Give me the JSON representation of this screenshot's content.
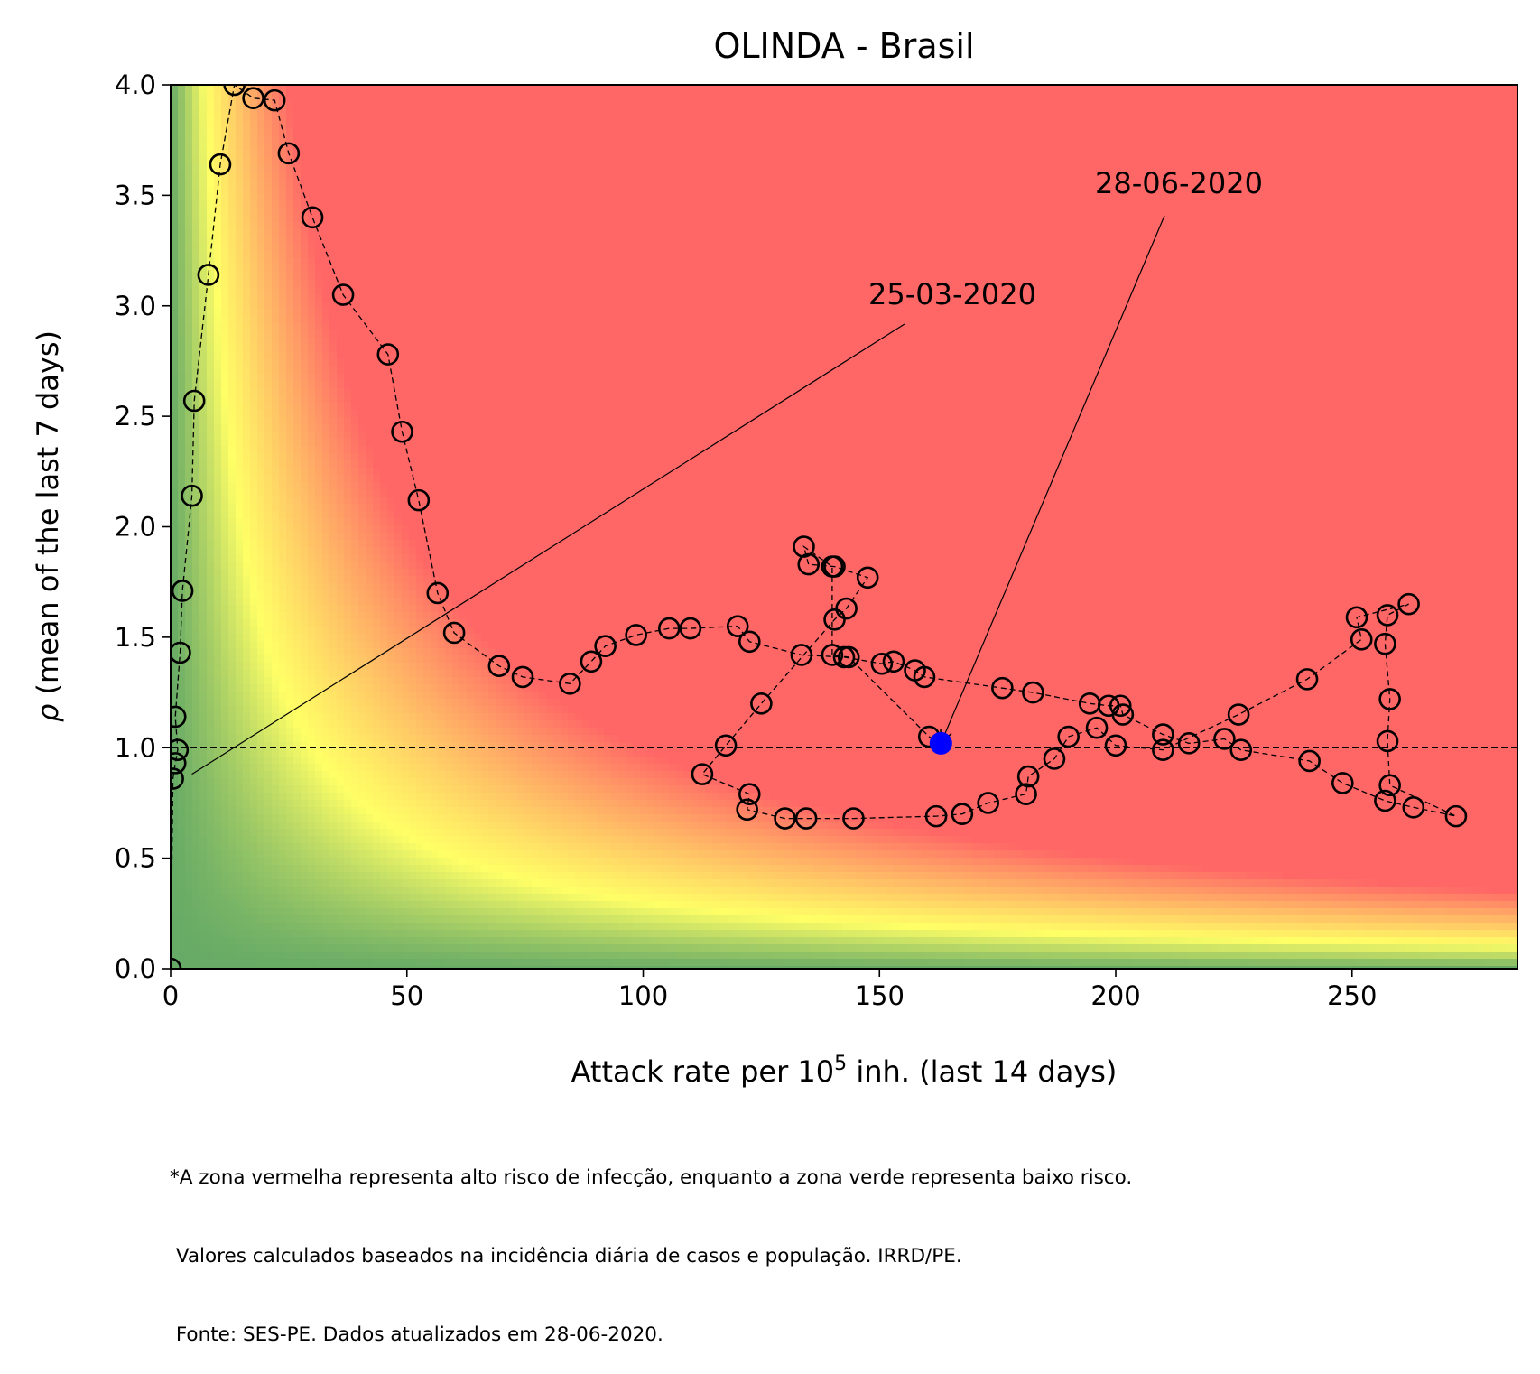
{
  "chart_data": {
    "type": "scatter",
    "title": "OLINDA - Brasil",
    "xlabel_prefix": "Attack rate per 10",
    "xlabel_sup": "5",
    "xlabel_suffix": " inh. (last 14 days)",
    "ylabel_symbol": "ρ",
    "ylabel_text": " (mean of the last 7 days)",
    "xlim": [
      0,
      285
    ],
    "ylim": [
      0,
      4.0
    ],
    "x_ticks": [
      0,
      50,
      100,
      150,
      200,
      250
    ],
    "x_tick_labels": [
      "0",
      "50",
      "100",
      "150",
      "200",
      "250"
    ],
    "y_ticks": [
      0,
      0.5,
      1.0,
      1.5,
      2.0,
      2.5,
      3.0,
      3.5,
      4.0
    ],
    "y_tick_labels": [
      "0.0",
      "0.5",
      "1.0",
      "1.5",
      "2.0",
      "2.5",
      "3.0",
      "3.5",
      "4.0"
    ],
    "grid": false,
    "reference_line_y": 1.0,
    "background": "risk colormap: green (low risk) to yellow to red (high risk) as attack rate × ρ increases",
    "colors": {
      "low_risk": "#66aa66",
      "medium_risk": "#ffff66",
      "high_risk": "#ff6666",
      "marker": "#000000",
      "current_point": "#0000ff"
    },
    "points": [
      {
        "x": 0.0,
        "y": 0.0
      },
      {
        "x": 0.5,
        "y": 0.86
      },
      {
        "x": 1.0,
        "y": 0.93
      },
      {
        "x": 1.5,
        "y": 0.99
      },
      {
        "x": 1.0,
        "y": 1.14
      },
      {
        "x": 2.0,
        "y": 1.43
      },
      {
        "x": 2.5,
        "y": 1.71
      },
      {
        "x": 4.5,
        "y": 2.14
      },
      {
        "x": 5.0,
        "y": 2.57
      },
      {
        "x": 8.0,
        "y": 3.14
      },
      {
        "x": 10.5,
        "y": 3.64
      },
      {
        "x": 13.5,
        "y": 4.0
      },
      {
        "x": 17.5,
        "y": 3.94
      },
      {
        "x": 22.0,
        "y": 3.93
      },
      {
        "x": 25.0,
        "y": 3.69
      },
      {
        "x": 30.0,
        "y": 3.4
      },
      {
        "x": 36.5,
        "y": 3.05
      },
      {
        "x": 46.0,
        "y": 2.78
      },
      {
        "x": 49.0,
        "y": 2.43
      },
      {
        "x": 52.5,
        "y": 2.12
      },
      {
        "x": 56.5,
        "y": 1.7
      },
      {
        "x": 60.0,
        "y": 1.52
      },
      {
        "x": 69.5,
        "y": 1.37
      },
      {
        "x": 74.5,
        "y": 1.32
      },
      {
        "x": 84.5,
        "y": 1.29
      },
      {
        "x": 89.0,
        "y": 1.39
      },
      {
        "x": 92.0,
        "y": 1.46
      },
      {
        "x": 98.5,
        "y": 1.51
      },
      {
        "x": 105.5,
        "y": 1.54
      },
      {
        "x": 110.0,
        "y": 1.54
      },
      {
        "x": 120.0,
        "y": 1.55
      },
      {
        "x": 122.5,
        "y": 1.48
      },
      {
        "x": 133.5,
        "y": 1.42
      },
      {
        "x": 142.5,
        "y": 1.41
      },
      {
        "x": 150.5,
        "y": 1.38
      },
      {
        "x": 153.0,
        "y": 1.39
      },
      {
        "x": 157.5,
        "y": 1.35
      },
      {
        "x": 159.5,
        "y": 1.32
      },
      {
        "x": 176.0,
        "y": 1.27
      },
      {
        "x": 182.5,
        "y": 1.25
      },
      {
        "x": 194.5,
        "y": 1.2
      },
      {
        "x": 198.5,
        "y": 1.19
      },
      {
        "x": 201.0,
        "y": 1.19
      },
      {
        "x": 201.5,
        "y": 1.15
      },
      {
        "x": 210.0,
        "y": 1.06
      },
      {
        "x": 215.5,
        "y": 1.02
      },
      {
        "x": 223.0,
        "y": 1.04
      },
      {
        "x": 226.5,
        "y": 0.99
      },
      {
        "x": 241.0,
        "y": 0.94
      },
      {
        "x": 248.0,
        "y": 0.84
      },
      {
        "x": 257.0,
        "y": 0.76
      },
      {
        "x": 263.0,
        "y": 0.73
      },
      {
        "x": 272.0,
        "y": 0.69
      },
      {
        "x": 258.0,
        "y": 0.83
      },
      {
        "x": 257.5,
        "y": 1.03
      },
      {
        "x": 258.0,
        "y": 1.22
      },
      {
        "x": 257.0,
        "y": 1.47
      },
      {
        "x": 257.5,
        "y": 1.6
      },
      {
        "x": 262.0,
        "y": 1.65
      },
      {
        "x": 251.0,
        "y": 1.59
      },
      {
        "x": 252.0,
        "y": 1.49
      },
      {
        "x": 240.5,
        "y": 1.31
      },
      {
        "x": 226.0,
        "y": 1.15
      },
      {
        "x": 210.0,
        "y": 0.99
      },
      {
        "x": 200.0,
        "y": 1.01
      },
      {
        "x": 196.0,
        "y": 1.09
      },
      {
        "x": 190.0,
        "y": 1.05
      },
      {
        "x": 187.0,
        "y": 0.95
      },
      {
        "x": 181.5,
        "y": 0.87
      },
      {
        "x": 181.0,
        "y": 0.79
      },
      {
        "x": 173.0,
        "y": 0.75
      },
      {
        "x": 167.5,
        "y": 0.7
      },
      {
        "x": 162.0,
        "y": 0.69
      },
      {
        "x": 144.5,
        "y": 0.68
      },
      {
        "x": 134.5,
        "y": 0.68
      },
      {
        "x": 130.0,
        "y": 0.68
      },
      {
        "x": 122.0,
        "y": 0.72
      },
      {
        "x": 122.5,
        "y": 0.79
      },
      {
        "x": 112.5,
        "y": 0.88
      },
      {
        "x": 117.5,
        "y": 1.01
      },
      {
        "x": 125.0,
        "y": 1.2
      },
      {
        "x": 140.5,
        "y": 1.58
      },
      {
        "x": 143.0,
        "y": 1.63
      },
      {
        "x": 147.5,
        "y": 1.77
      },
      {
        "x": 140.5,
        "y": 1.82
      },
      {
        "x": 135.0,
        "y": 1.83
      },
      {
        "x": 134.0,
        "y": 1.91
      },
      {
        "x": 140.0,
        "y": 1.82
      },
      {
        "x": 140.0,
        "y": 1.42
      },
      {
        "x": 143.5,
        "y": 1.41
      },
      {
        "x": 160.5,
        "y": 1.05
      }
    ],
    "current_point": {
      "x": 163.0,
      "y": 1.02
    },
    "annotations": [
      {
        "text": "25-03-2020",
        "x": 4.5,
        "y": 0.88
      },
      {
        "text": "28-06-2020",
        "x": 163.0,
        "y": 1.02
      }
    ]
  },
  "footnote": {
    "line1": "*A zona vermelha representa alto risco de infecção, enquanto a zona verde representa baixo risco.",
    "line2": " Valores calculados baseados na incidência diária de casos e população. IRRD/PE.",
    "line3": " Fonte: SES-PE. Dados atualizados em 28-06-2020."
  }
}
